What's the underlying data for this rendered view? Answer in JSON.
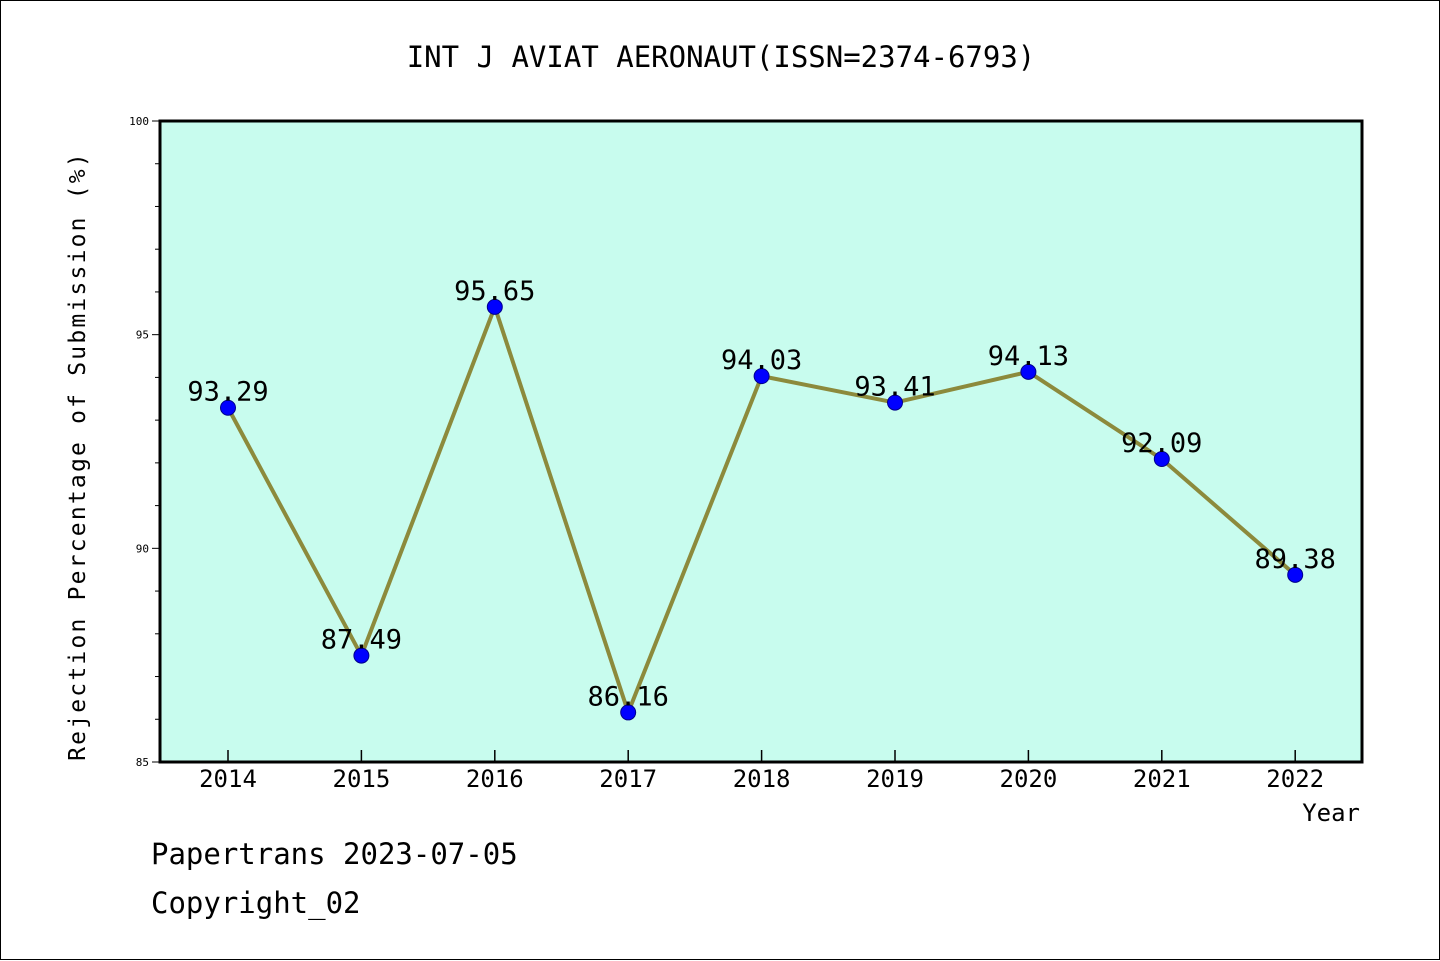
{
  "footer": {
    "line1": "Papertrans 2023-07-05",
    "line2": "Copyright_02"
  },
  "colors": {
    "plot_background": "#c8fcee",
    "line": "#8c8a3c",
    "marker": "#0000ff",
    "axis": "#000000"
  },
  "chart_data": {
    "type": "line",
    "title": "INT J AVIAT AERONAUT(ISSN=2374-6793)",
    "xlabel": "Year",
    "ylabel": "Rejection Percentage of Submission (%)",
    "x": [
      "2014",
      "2015",
      "2016",
      "2017",
      "2018",
      "2019",
      "2020",
      "2021",
      "2022"
    ],
    "series": [
      {
        "values": [
          93.29,
          87.49,
          95.65,
          86.16,
          94.03,
          93.41,
          94.13,
          92.09,
          89.38
        ],
        "labels": [
          "93.29",
          "87.49",
          "95.65",
          "86.16",
          "94.03",
          "93.41",
          "94.13",
          "92.09",
          "89.38"
        ]
      }
    ],
    "ylim": [
      85,
      100
    ],
    "yticks": [
      "85",
      "90",
      "95",
      "100"
    ],
    "grid": false,
    "legend": "none"
  }
}
